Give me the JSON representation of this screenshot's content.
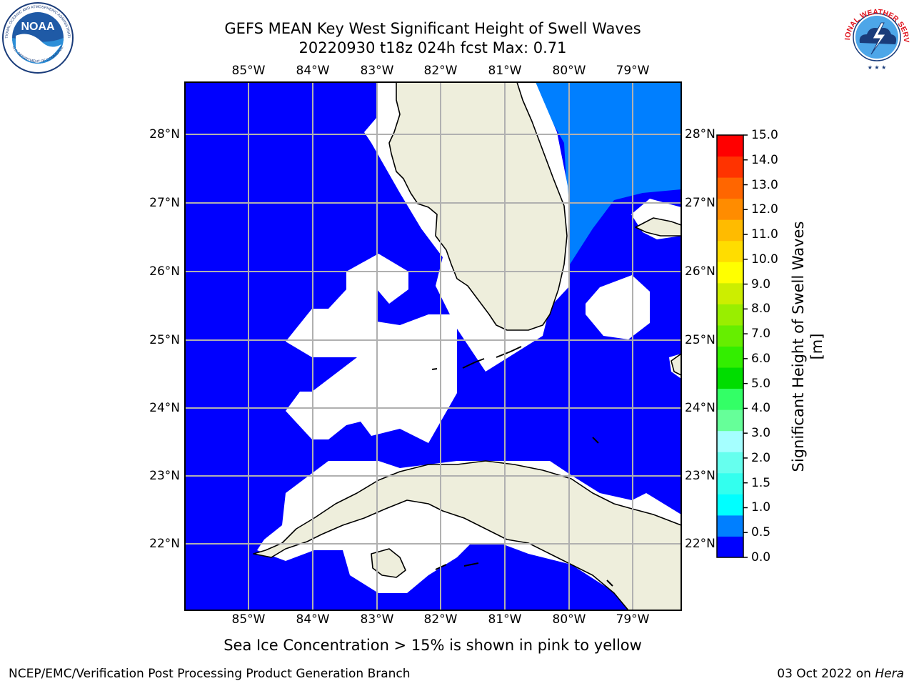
{
  "header": {
    "title": "GEFS MEAN Key West Significant Height of Swell Waves",
    "subtitle": "20220930 t18z 024h fcst   Max: 0.71"
  },
  "logos": {
    "left": {
      "text": "NOAA",
      "ring_top": "NATIONAL OCEANIC AND ATMOSPHERIC ADMINISTRATION",
      "ring_bottom": "U.S. DEPARTMENT OF COMMERCE"
    },
    "right": {
      "ring_text": "NATIONAL WEATHER SERVICE"
    }
  },
  "map": {
    "lon_labels": [
      "85°W",
      "84°W",
      "83°W",
      "82°W",
      "81°W",
      "80°W",
      "79°W"
    ],
    "lat_labels": [
      "28°N",
      "27°N",
      "26°N",
      "25°N",
      "24°N",
      "23°N",
      "22°N"
    ],
    "colors": {
      "ocean_low": "#0000ff",
      "ocean_mid": "#007fff",
      "land": "#eeeedc",
      "no_data": "#ffffff",
      "grid": "#b0b0b0"
    }
  },
  "colorbar": {
    "label": "Significant Height of Swell Waves [m]",
    "ticks": [
      "15.0",
      "14.0",
      "13.0",
      "12.0",
      "11.0",
      "10.0",
      "9.0",
      "8.0",
      "7.0",
      "6.0",
      "5.0",
      "4.0",
      "3.0",
      "2.0",
      "1.5",
      "1.0",
      "0.5",
      "0.0"
    ],
    "colors": [
      "#0000ff",
      "#007fff",
      "#00ffff",
      "#33ffee",
      "#66ffee",
      "#a5ffff",
      "#66ff99",
      "#33ff66",
      "#00dd00",
      "#33ee00",
      "#66ee00",
      "#99ee00",
      "#ccee00",
      "#ffff00",
      "#ffdd00",
      "#ffbb00",
      "#ff8c00",
      "#ff6600",
      "#ff3300",
      "#ff0000"
    ]
  },
  "note": "Sea Ice Concentration > 15% is shown in pink to yellow",
  "footer": {
    "left": "NCEP/EMC/Verification Post Processing Product Generation Branch",
    "date": "03 Oct 2022 on ",
    "host": "Hera"
  }
}
